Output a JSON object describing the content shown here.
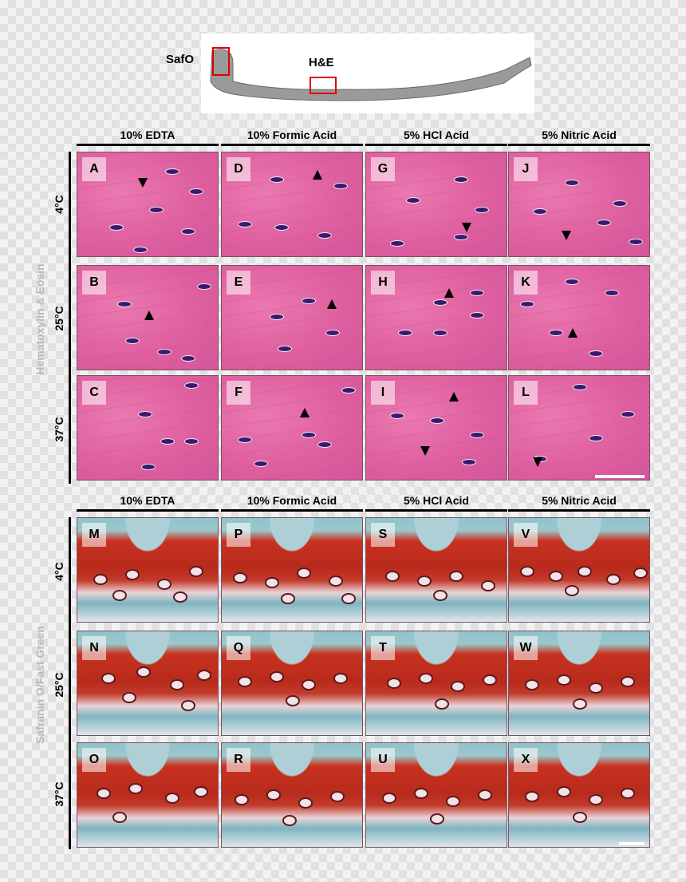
{
  "top_image": {
    "label_safo": "SafO",
    "label_he": "H&E"
  },
  "columns": [
    "10% EDTA",
    "10% Formic Acid",
    "5% HCl Acid",
    "5% Nitric Acid"
  ],
  "rows": [
    "4°C",
    "25°C",
    "37°C"
  ],
  "section_he": {
    "title": "Hematoxylin & Eosin",
    "panels": [
      "A",
      "D",
      "G",
      "J",
      "B",
      "E",
      "H",
      "K",
      "C",
      "F",
      "I",
      "L"
    ]
  },
  "section_saf": {
    "title": "Safranin O/Fast Green",
    "panels": [
      "M",
      "P",
      "S",
      "V",
      "N",
      "Q",
      "T",
      "W",
      "O",
      "R",
      "U",
      "X"
    ]
  },
  "colors": {
    "he": "#e16aa6",
    "saf_red": "#c8321f",
    "saf_green": "#8fc3cc"
  }
}
